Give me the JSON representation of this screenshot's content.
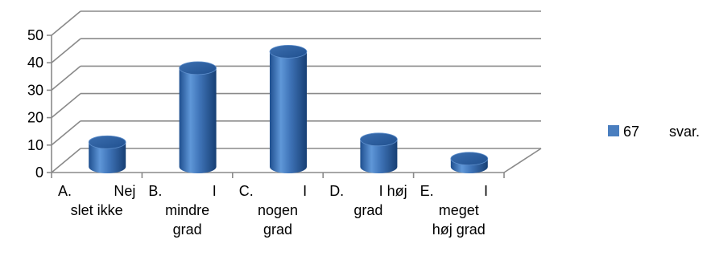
{
  "chart_data": {
    "type": "bar",
    "style": "3d-cylinder",
    "categories": [
      [
        "A.",
        "Nej",
        "slet ikke"
      ],
      [
        "B.",
        "I",
        "mindre",
        "grad"
      ],
      [
        "C.",
        "I",
        "nogen",
        "grad"
      ],
      [
        "D.",
        "I høj",
        "grad"
      ],
      [
        "E.",
        "I",
        "meget",
        "høj grad"
      ]
    ],
    "series": [
      {
        "name": "67 svar.",
        "values": [
          9,
          36,
          42,
          10,
          3
        ],
        "color": "#4a7ebf"
      }
    ],
    "ylim": [
      0,
      50
    ],
    "yticks": [
      0,
      10,
      20,
      30,
      40,
      50
    ],
    "grid": true,
    "legend": "right",
    "legend_parts": [
      "67",
      "svar."
    ],
    "title": "",
    "xlabel": "",
    "ylabel": ""
  }
}
